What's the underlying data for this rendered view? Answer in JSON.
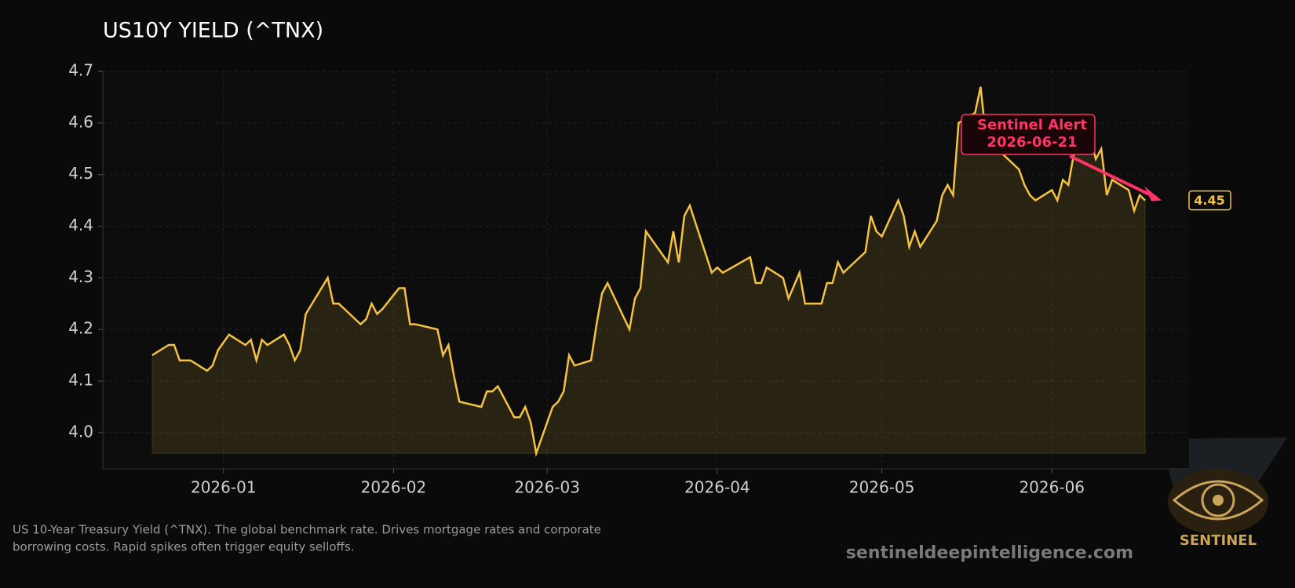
{
  "chart_data": {
    "type": "line",
    "title": "US10Y YIELD (^TNX)",
    "x": [
      "2025-12-19",
      "2025-12-22",
      "2025-12-23",
      "2025-12-24",
      "2025-12-26",
      "2025-12-29",
      "2025-12-30",
      "2025-12-31",
      "2026-01-02",
      "2026-01-05",
      "2026-01-06",
      "2026-01-07",
      "2026-01-08",
      "2026-01-09",
      "2026-01-12",
      "2026-01-13",
      "2026-01-14",
      "2026-01-15",
      "2026-01-16",
      "2026-01-20",
      "2026-01-21",
      "2026-01-22",
      "2026-01-23",
      "2026-01-26",
      "2026-01-27",
      "2026-01-28",
      "2026-01-29",
      "2026-01-30",
      "2026-02-02",
      "2026-02-03",
      "2026-02-04",
      "2026-02-05",
      "2026-02-09",
      "2026-02-10",
      "2026-02-11",
      "2026-02-12",
      "2026-02-13",
      "2026-02-17",
      "2026-02-18",
      "2026-02-19",
      "2026-02-20",
      "2026-02-23",
      "2026-02-24",
      "2026-02-25",
      "2026-02-26",
      "2026-02-27",
      "2026-03-02",
      "2026-03-03",
      "2026-03-04",
      "2026-03-05",
      "2026-03-06",
      "2026-03-09",
      "2026-03-10",
      "2026-03-11",
      "2026-03-12",
      "2026-03-16",
      "2026-03-17",
      "2026-03-18",
      "2026-03-19",
      "2026-03-23",
      "2026-03-24",
      "2026-03-25",
      "2026-03-26",
      "2026-03-27",
      "2026-03-31",
      "2026-04-01",
      "2026-04-02",
      "2026-04-07",
      "2026-04-08",
      "2026-04-09",
      "2026-04-10",
      "2026-04-13",
      "2026-04-14",
      "2026-04-16",
      "2026-04-17",
      "2026-04-20",
      "2026-04-21",
      "2026-04-22",
      "2026-04-23",
      "2026-04-24",
      "2026-04-27",
      "2026-04-28",
      "2026-04-29",
      "2026-04-30",
      "2026-05-01",
      "2026-05-04",
      "2026-05-05",
      "2026-05-06",
      "2026-05-07",
      "2026-05-08",
      "2026-05-11",
      "2026-05-12",
      "2026-05-13",
      "2026-05-14",
      "2026-05-15",
      "2026-05-18",
      "2026-05-19",
      "2026-05-20",
      "2026-05-21",
      "2026-05-22",
      "2026-05-26",
      "2026-05-27",
      "2026-05-28",
      "2026-05-29",
      "2026-06-01",
      "2026-06-02",
      "2026-06-03",
      "2026-06-04",
      "2026-06-05",
      "2026-06-08",
      "2026-06-09",
      "2026-06-10",
      "2026-06-11",
      "2026-06-12",
      "2026-06-15",
      "2026-06-16",
      "2026-06-17",
      "2026-06-18"
    ],
    "values": [
      4.15,
      4.17,
      4.17,
      4.14,
      4.14,
      4.12,
      4.13,
      4.16,
      4.19,
      4.17,
      4.18,
      4.14,
      4.18,
      4.17,
      4.19,
      4.17,
      4.14,
      4.16,
      4.23,
      4.3,
      4.25,
      4.25,
      4.24,
      4.21,
      4.22,
      4.25,
      4.23,
      4.24,
      4.28,
      4.28,
      4.21,
      4.21,
      4.2,
      4.15,
      4.17,
      4.11,
      4.06,
      4.05,
      4.08,
      4.08,
      4.09,
      4.03,
      4.03,
      4.05,
      4.02,
      3.96,
      4.05,
      4.06,
      4.08,
      4.15,
      4.13,
      4.14,
      4.21,
      4.27,
      4.29,
      4.2,
      4.26,
      4.28,
      4.39,
      4.33,
      4.39,
      4.33,
      4.42,
      4.44,
      4.31,
      4.32,
      4.31,
      4.34,
      4.29,
      4.29,
      4.32,
      4.3,
      4.26,
      4.31,
      4.25,
      4.25,
      4.29,
      4.29,
      4.33,
      4.31,
      4.34,
      4.35,
      4.42,
      4.39,
      4.38,
      4.45,
      4.42,
      4.36,
      4.39,
      4.36,
      4.41,
      4.46,
      4.48,
      4.46,
      4.6,
      4.62,
      4.67,
      4.57,
      4.56,
      4.55,
      4.51,
      4.48,
      4.46,
      4.45,
      4.47,
      4.45,
      4.49,
      4.48,
      4.54,
      4.57,
      4.53,
      4.55,
      4.46,
      4.49,
      4.47,
      4.43,
      4.46,
      4.45
    ],
    "color": "#f5c242",
    "xlim": [
      "2025-12-10",
      "2026-06-26"
    ],
    "xticks": [
      {
        "value": "2026-01-01",
        "label": "2026-01"
      },
      {
        "value": "2026-02-01",
        "label": "2026-02"
      },
      {
        "value": "2026-03-01",
        "label": "2026-03"
      },
      {
        "value": "2026-04-01",
        "label": "2026-04"
      },
      {
        "value": "2026-05-01",
        "label": "2026-05"
      },
      {
        "value": "2026-06-01",
        "label": "2026-06"
      }
    ],
    "ylim": [
      3.93,
      4.7
    ],
    "yticks": [
      {
        "value": 4,
        "label": "4.0"
      },
      4.1,
      4.2,
      4.3,
      4.4,
      4.5,
      4.6,
      4.7
    ],
    "grid": true,
    "annotation": {
      "lines": [
        "Sentinel Alert",
        "2026-06-21"
      ],
      "x": "2026-06-21",
      "y": 4.45,
      "color": "#ff3366"
    },
    "end_label": "4.45",
    "caption": [
      "US 10-Year Treasury Yield (^TNX). The global benchmark rate. Drives mortgage rates and corporate",
      "borrowing costs. Rapid spikes often trigger equity selloffs."
    ],
    "watermark": "sentineldeepintelligence.com",
    "logo_text": "SENTINEL"
  }
}
